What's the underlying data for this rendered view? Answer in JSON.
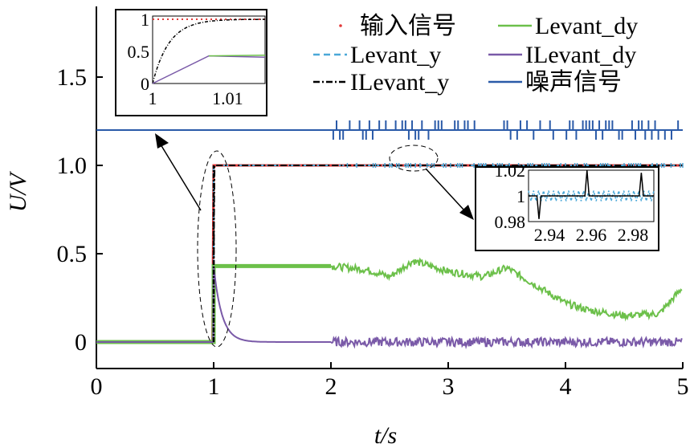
{
  "chart_data": {
    "type": "line",
    "xlabel": "t/s",
    "ylabel": "U/V",
    "xlim": [
      0,
      5
    ],
    "ylim": [
      -0.15,
      1.9
    ],
    "xticks": [
      "0",
      "1",
      "2",
      "3",
      "4",
      "5"
    ],
    "yticks": [
      "0",
      "0.5",
      "1.0",
      "1.5"
    ],
    "grid": false,
    "legend_placement": "top-right",
    "series": [
      {
        "name": "输入信号",
        "color": "#e23a3a",
        "style": "dotted",
        "x": [
          0,
          0.99,
          1.0,
          5
        ],
        "y": [
          0,
          0,
          1,
          1
        ]
      },
      {
        "name": "Levant_dy",
        "color": "#6cc04a",
        "style": "solid",
        "x": [
          0,
          1.0,
          1.0,
          2.0,
          2.3,
          2.5,
          2.7,
          3.0,
          3.3,
          3.5,
          3.8,
          4.0,
          4.2,
          4.5,
          4.8,
          5.0
        ],
        "y": [
          0,
          0,
          0.43,
          0.43,
          0.41,
          0.37,
          0.46,
          0.4,
          0.37,
          0.42,
          0.3,
          0.22,
          0.18,
          0.15,
          0.16,
          0.31
        ]
      },
      {
        "name": "Levant_y",
        "color": "#4aa8d8",
        "style": "dashed",
        "x": [
          0,
          1.0,
          1.0,
          5
        ],
        "y": [
          0,
          0,
          1,
          1
        ]
      },
      {
        "name": "ILevant_dy",
        "color": "#7a5aa8",
        "style": "solid",
        "x": [
          0,
          1.0,
          1.0,
          1.05,
          1.1,
          1.2,
          1.3,
          2.0,
          5.0
        ],
        "y": [
          0,
          0,
          0.43,
          0.22,
          0.09,
          0.02,
          0,
          0,
          0
        ]
      },
      {
        "name": "ILevant_y",
        "color": "#000000",
        "style": "dashdot",
        "x": [
          0,
          1.0,
          1.003,
          1.008,
          5
        ],
        "y": [
          0,
          0,
          0.7,
          1,
          1
        ]
      },
      {
        "name": "噪声信号",
        "color": "#2a5aa8",
        "style": "solid",
        "x": [
          0,
          5
        ],
        "y": [
          1.2,
          1.2
        ]
      }
    ],
    "insets": [
      {
        "xlim": [
          1,
          1.015
        ],
        "ylim": [
          0,
          1.05
        ],
        "xticks": [
          "1",
          "1.01"
        ],
        "yticks": [
          "0",
          "0.5",
          "1"
        ]
      },
      {
        "xlim": [
          2.93,
          2.99
        ],
        "ylim": [
          0.98,
          1.02
        ],
        "xticks": [
          "2.94",
          "2.96",
          "2.98"
        ],
        "yticks": [
          "0.98",
          "1",
          "1.02"
        ]
      }
    ]
  }
}
